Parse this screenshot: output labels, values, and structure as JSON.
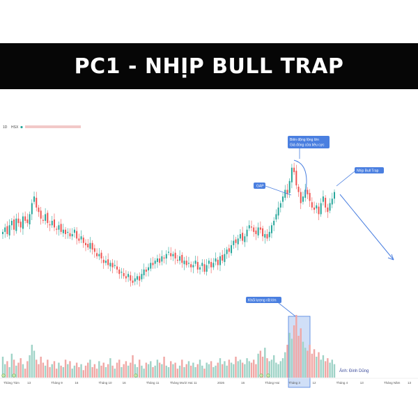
{
  "banner": {
    "title": "PC1 - NHỊP BULL TRAP"
  },
  "header": {
    "interval": "1D",
    "exchange": "HSX"
  },
  "annotations": {
    "gap": "GAP",
    "wide_range_line1": "Biên động lộng lớn",
    "wide_range_line2": "Giá đóng cửa tiêu cực",
    "bull_trap": "Nhịp Bull Trap",
    "volume_climax": "Khối lượng rất lớn"
  },
  "credit": "Ảnh: Đinh Dũng",
  "colors": {
    "up": "#26a69a",
    "down": "#ef5350",
    "annotation": "#4a7fe0",
    "highlight_fill": "#aac4f0",
    "banner_bg": "#060606",
    "banner_text": "#ffffff"
  },
  "chart_data": {
    "type": "candlestick",
    "title": "",
    "xlabel": "",
    "ylabel": "",
    "grid": false,
    "x_ticks": [
      "Tháng Tám",
      "13",
      "Tháng 9",
      "16",
      "Tháng 10",
      "16",
      "Tháng 11",
      "Tháng Mười Hai",
      "11",
      "2026",
      "16",
      "Tháng Hai",
      "Tháng 3",
      "12",
      "Tháng 4",
      "13",
      "Tháng Năm",
      "13"
    ],
    "price_close": [
      39,
      41,
      38,
      42,
      44,
      40,
      45,
      43,
      41,
      46,
      44,
      43,
      47,
      52,
      55,
      50,
      48,
      45,
      44,
      47,
      43,
      42,
      44,
      41,
      40,
      42,
      39,
      40,
      38,
      39,
      37,
      38,
      40,
      36,
      35,
      37,
      34,
      33,
      32,
      34,
      31,
      30,
      28,
      29,
      27,
      25,
      26,
      24,
      25,
      23,
      24,
      22,
      20,
      21,
      19,
      18,
      20,
      17,
      16,
      18,
      19,
      17,
      20,
      22,
      21,
      23,
      25,
      24,
      26,
      27,
      25,
      28,
      27,
      29,
      30,
      28,
      29,
      27,
      26,
      28,
      25,
      26,
      24,
      25,
      23,
      24,
      26,
      22,
      23,
      25,
      21,
      24,
      26,
      23,
      25,
      27,
      24,
      28,
      26,
      29,
      31,
      30,
      33,
      35,
      34,
      36,
      38,
      35,
      37,
      40,
      42,
      41,
      39,
      38,
      41,
      40,
      37,
      38,
      36,
      39,
      42,
      44,
      47,
      50,
      52,
      55,
      58,
      56,
      62,
      68,
      66,
      60,
      57,
      52,
      55,
      58,
      56,
      53,
      50,
      49,
      51,
      47,
      52,
      55,
      50,
      48,
      52,
      54,
      57
    ],
    "volume": [
      14,
      9,
      11,
      7,
      16,
      12,
      8,
      10,
      13,
      9,
      6,
      11,
      15,
      22,
      18,
      12,
      9,
      14,
      10,
      8,
      12,
      7,
      9,
      11,
      6,
      10,
      8,
      7,
      12,
      9,
      11,
      6,
      8,
      10,
      7,
      9,
      5,
      8,
      10,
      12,
      7,
      9,
      6,
      11,
      8,
      10,
      7,
      9,
      13,
      8,
      6,
      10,
      12,
      7,
      9,
      11,
      8,
      10,
      15,
      9,
      7,
      12,
      8,
      6,
      10,
      9,
      11,
      7,
      8,
      12,
      10,
      9,
      14,
      8,
      7,
      11,
      9,
      10,
      6,
      8,
      12,
      7,
      9,
      11,
      8,
      10,
      7,
      9,
      12,
      8,
      6,
      10,
      9,
      11,
      7,
      8,
      10,
      13,
      9,
      11,
      8,
      12,
      10,
      9,
      14,
      11,
      12,
      10,
      9,
      13,
      11,
      10,
      12,
      9,
      16,
      18,
      14,
      20,
      13,
      11,
      12,
      15,
      10,
      9,
      11,
      13,
      17,
      22,
      30,
      26,
      35,
      42,
      28,
      33,
      24,
      20,
      18,
      22,
      16,
      19,
      14,
      17,
      12,
      15,
      11,
      13,
      10,
      12,
      9
    ],
    "volume_units": "relative",
    "arrow": "projected decline after bull trap"
  }
}
